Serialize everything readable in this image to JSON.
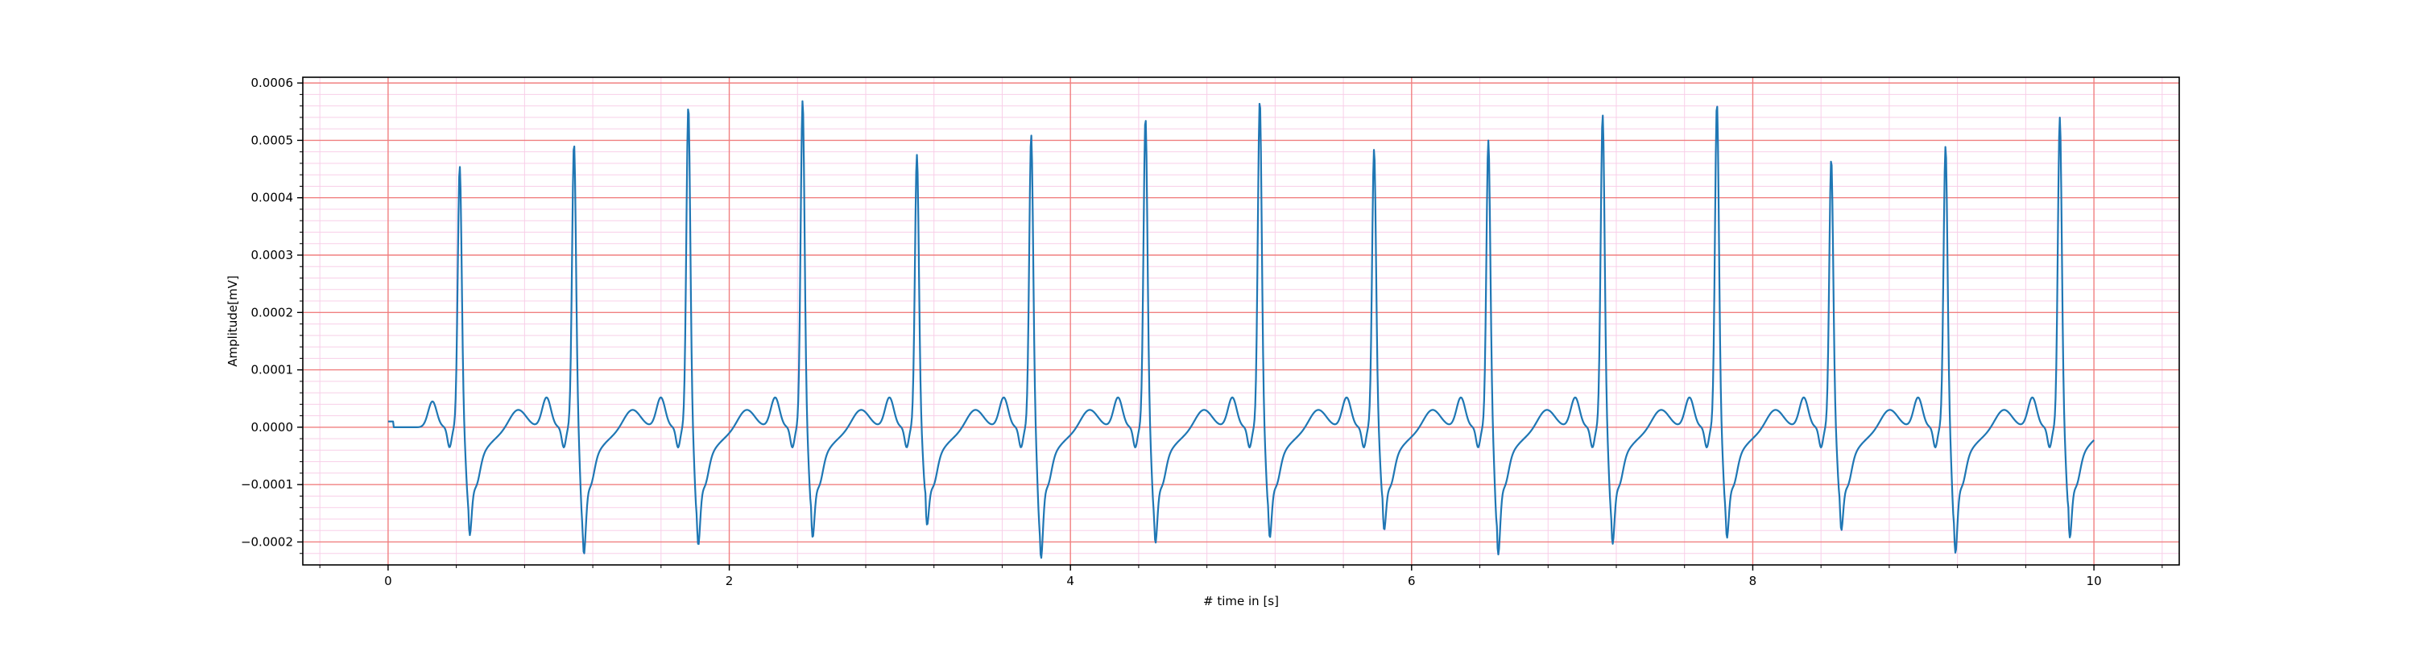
{
  "chart_data": {
    "type": "line",
    "title": "",
    "xlabel": "# time in [s]",
    "ylabel": "Amplitude[mV]",
    "xlim": [
      -0.5,
      10.5
    ],
    "ylim": [
      -0.00024,
      0.00061
    ],
    "x_ticks": [
      0,
      2,
      4,
      6,
      8,
      10
    ],
    "x_tick_labels": [
      "0",
      "2",
      "4",
      "6",
      "8",
      "10"
    ],
    "y_ticks": [
      -0.0002,
      -0.0001,
      0.0,
      0.0001,
      0.0002,
      0.0003,
      0.0004,
      0.0005,
      0.0006
    ],
    "y_tick_labels": [
      "−0.0002",
      "−0.0001",
      "0.0000",
      "0.0001",
      "0.0002",
      "0.0003",
      "0.0004",
      "0.0005",
      "0.0006"
    ],
    "grid": {
      "major": true,
      "minor": true,
      "major_color": "#f08080",
      "minor_color": "#f8cfe8"
    },
    "series": [
      {
        "color": "#1f77b4",
        "duration": 10.0,
        "beats": [
          {
            "t": 0.42,
            "peak": 0.00046,
            "nadir": -0.000155
          },
          {
            "t": 1.09,
            "peak": 0.0005,
            "nadir": -0.000192
          },
          {
            "t": 1.76,
            "peak": 0.000565,
            "nadir": -0.000175
          },
          {
            "t": 2.43,
            "peak": 0.000575,
            "nadir": -0.00016
          },
          {
            "t": 3.1,
            "peak": 0.00048,
            "nadir": -0.000135
          },
          {
            "t": 3.77,
            "peak": 0.000515,
            "nadir": -0.0002
          },
          {
            "t": 4.44,
            "peak": 0.000545,
            "nadir": -0.00017
          },
          {
            "t": 5.11,
            "peak": 0.000575,
            "nadir": -0.00016
          },
          {
            "t": 5.78,
            "peak": 0.00049,
            "nadir": -0.000145
          },
          {
            "t": 6.45,
            "peak": 0.000505,
            "nadir": -0.000193
          },
          {
            "t": 7.12,
            "peak": 0.00055,
            "nadir": -0.000172
          },
          {
            "t": 7.79,
            "peak": 0.00057,
            "nadir": -0.00016
          },
          {
            "t": 8.46,
            "peak": 0.000473,
            "nadir": -0.000145
          },
          {
            "t": 9.13,
            "peak": 0.000495,
            "nadir": -0.00019
          },
          {
            "t": 9.8,
            "peak": 0.000545,
            "nadir": -0.00016
          }
        ]
      }
    ]
  }
}
